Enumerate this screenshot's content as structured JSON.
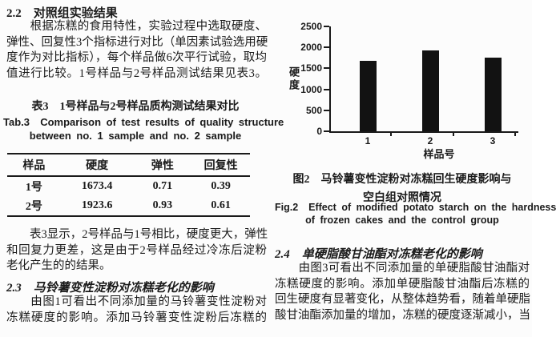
{
  "page": {
    "background": "#fcfcfc",
    "ink": "#1a1a1a"
  },
  "left_column": {
    "section_2_2": {
      "heading": "2.2　对照组实验结果",
      "paragraph_lines": [
        "　　根据冻糕的食用特性，实验过程中选取硬度、",
        "弹性、回复性3个指标进行对比（单因素试验选用硬",
        "度作为对比指标），每个样品做6次平行试验，取均",
        "值进行比较。1号样品与2号样品测试结果见表3。"
      ]
    },
    "table3": {
      "caption_zh": "表3　1号样品与2号样品质构测试结果对比",
      "caption_en_line1": "Tab.3  Comparison of test results of quality structure",
      "caption_en_line2": "between no. 1 sample and no. 2 sample",
      "headers": [
        "样品",
        "硬度",
        "弹性",
        "回复性"
      ],
      "rows": [
        [
          "1号",
          "1673.4",
          "0.71",
          "0.39"
        ],
        [
          "2号",
          "1923.6",
          "0.93",
          "0.61"
        ]
      ]
    },
    "paragraph_after_table_lines": [
      "　　表3显示，2号样品与1号相比，硬度更大，弹性",
      "和回复力更差，这是由于2号样品经过冷冻后淀粉",
      "老化产生的的结果。"
    ],
    "section_2_3": {
      "heading": "2.3　马铃薯变性淀粉对冻糕老化的影响",
      "paragraph_lines": [
        "　　由图1可看出不同添加量的马铃薯变性淀粉对",
        "冻糕硬度的影响。添加马铃薯变性淀粉后冻糕的"
      ]
    }
  },
  "right_column": {
    "figure2": {
      "caption_zh_line1": "图2　马铃薯变性淀粉对冻糕回生硬度影响与",
      "caption_zh_line2": "空白组对照情况",
      "caption_en_line1": "Fig.2  Effect of modified potato starch on the hardness",
      "caption_en_line2": "of frozen cakes and the control group"
    },
    "section_2_4": {
      "heading": "2.4　单硬脂酸甘油酯对冻糕老化的影响",
      "paragraph_lines": [
        "　　由图3可看出不同添加量的单硬脂酸甘油酯对",
        "冻糕硬度的影响。添加单硬脂酸甘油酯后冻糕的",
        "回生硬度有显著变化，从整体趋势看，随着单硬脂",
        "酸甘油酯添加量的增加，冻糕的硬度逐渐减小，当"
      ]
    }
  },
  "chart_data": {
    "type": "bar",
    "title": "",
    "categories": [
      "1",
      "2",
      "3"
    ],
    "values": [
      1673,
      1924,
      1750
    ],
    "xlabel": "样品号",
    "ylabel": "硬度",
    "ylim": [
      0,
      2500
    ],
    "yticks": [
      0,
      500,
      1000,
      1500,
      2000,
      2500
    ],
    "bar_color": "#121212",
    "grid": false,
    "legend": "none"
  }
}
